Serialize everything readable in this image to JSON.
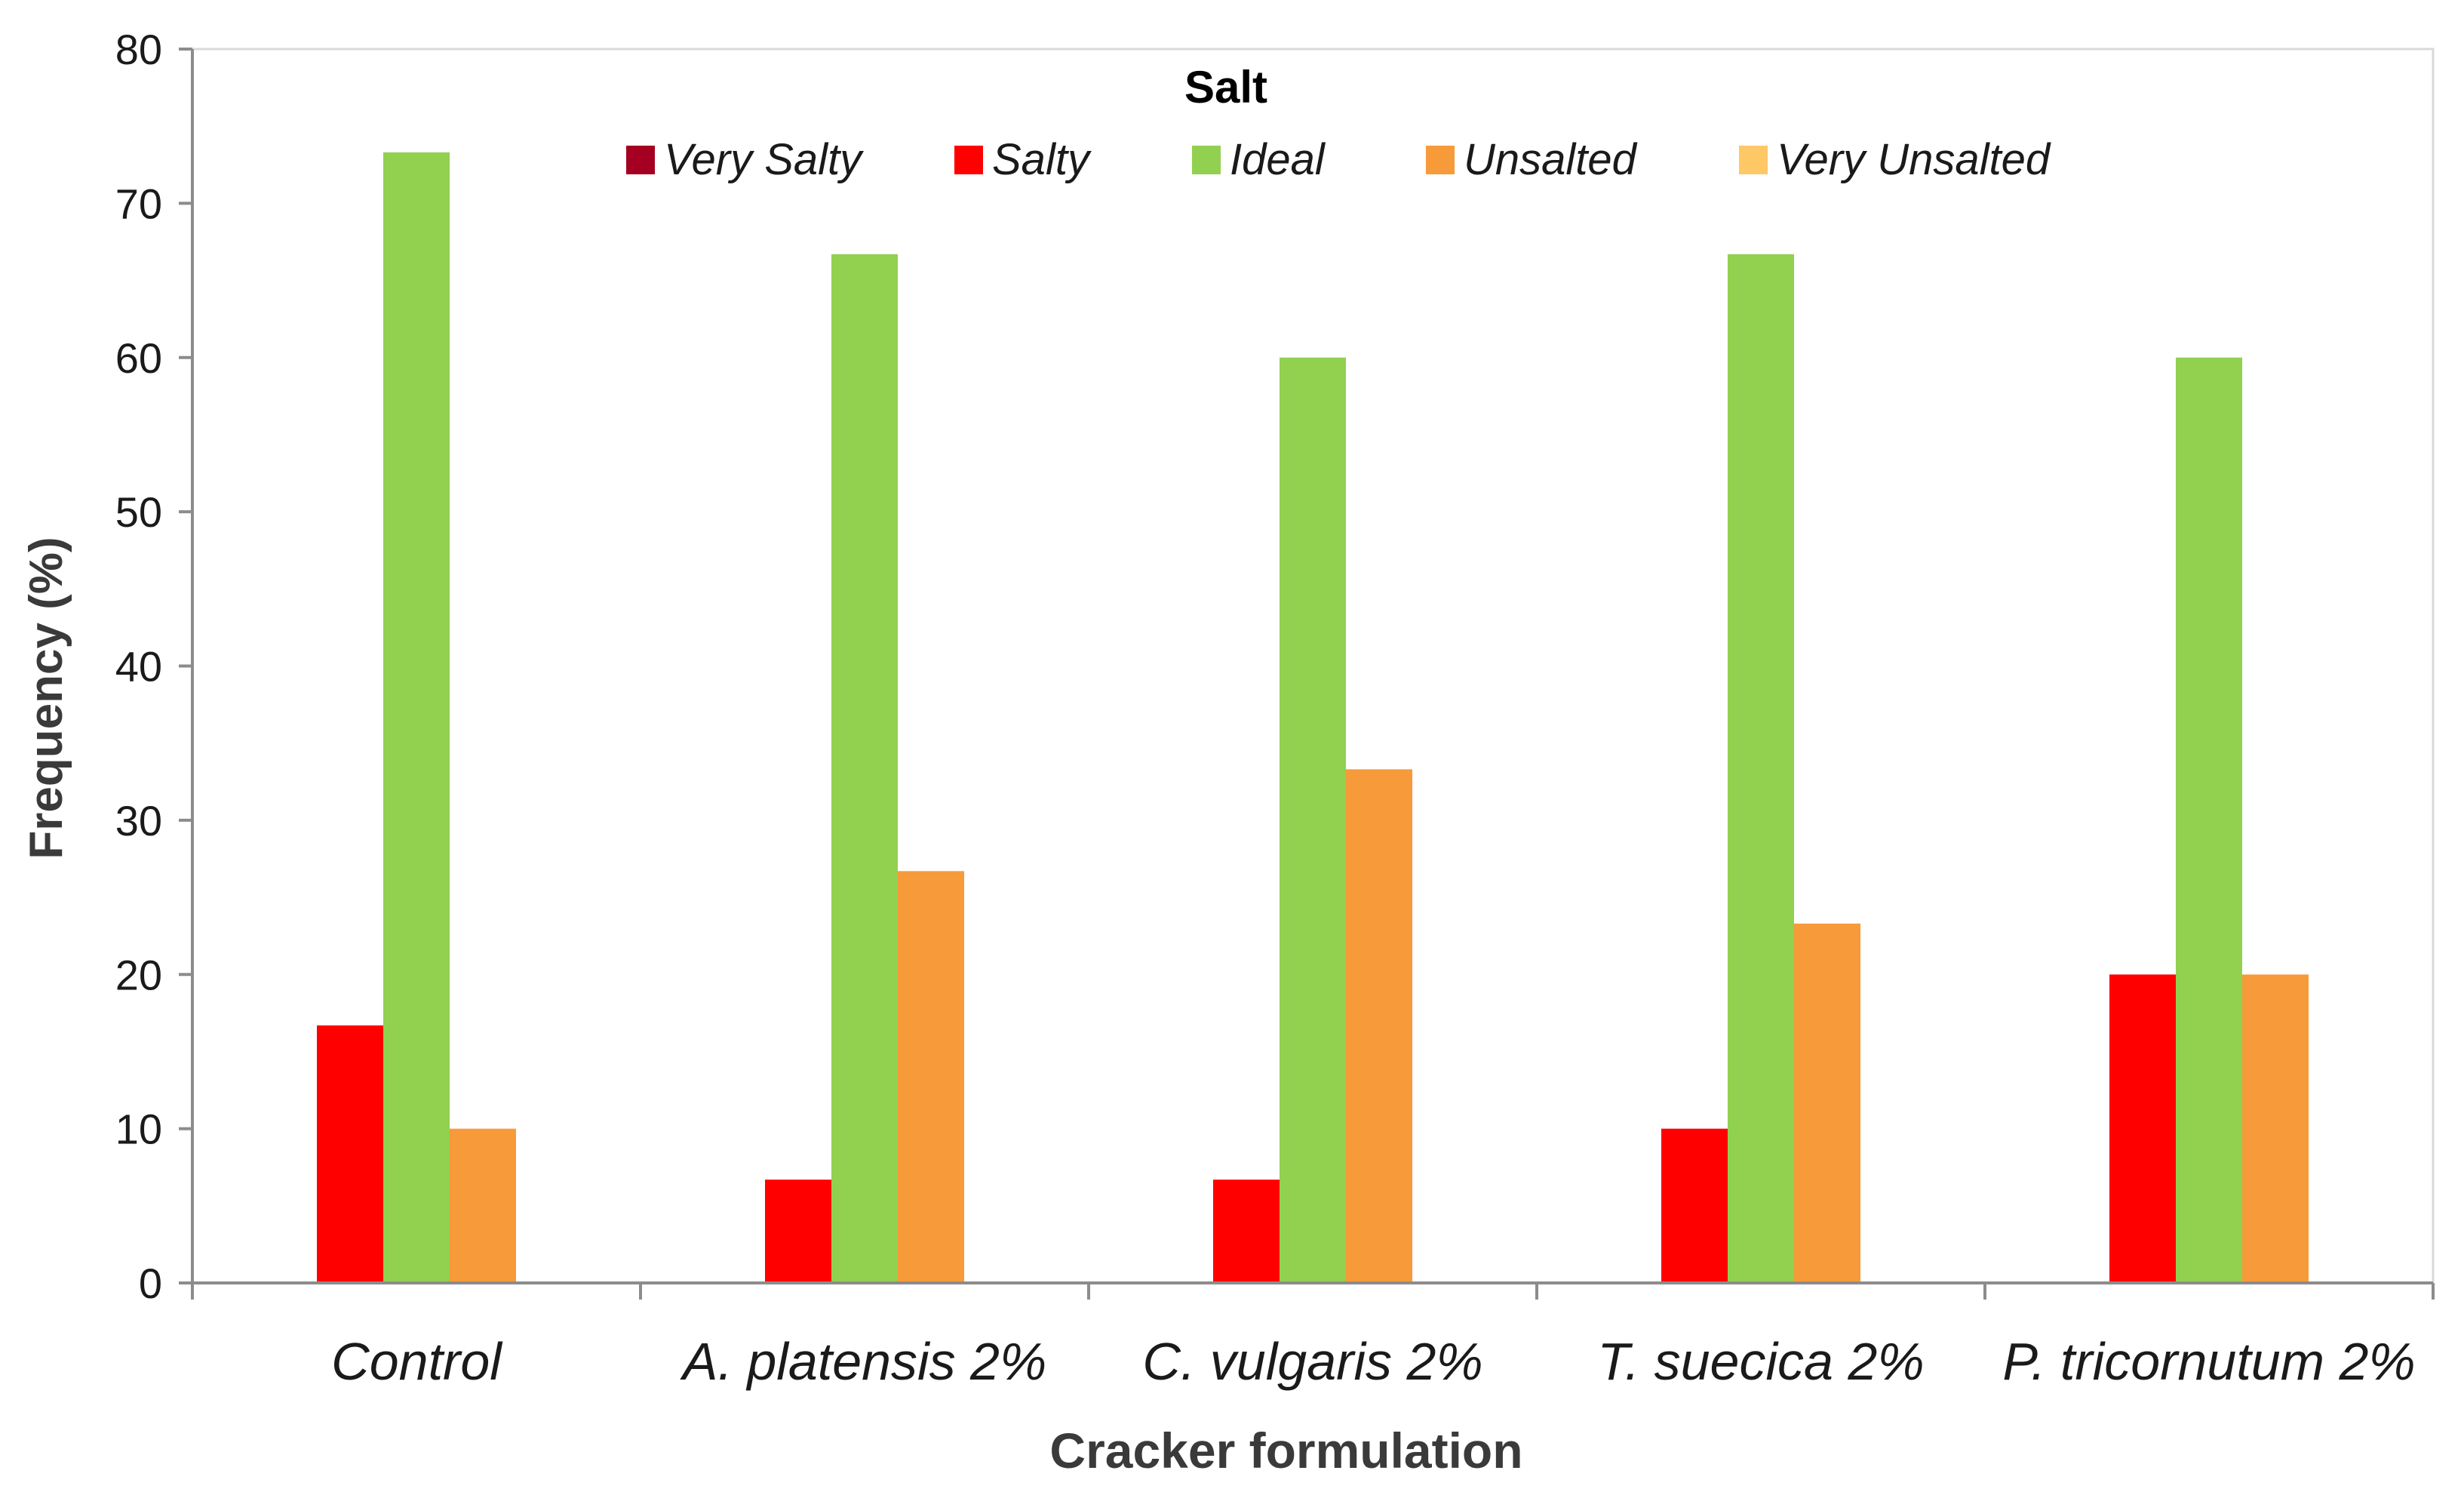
{
  "chart_data": {
    "type": "bar",
    "title": "Salt",
    "xlabel": "Cracker formulation",
    "ylabel": "Frequency (%)",
    "ylim": [
      0,
      80
    ],
    "yticks": [
      0,
      10,
      20,
      30,
      40,
      50,
      60,
      70,
      80
    ],
    "ytick_labels": [
      "0",
      "10",
      "20",
      "30",
      "40",
      "50",
      "60",
      "70",
      "80"
    ],
    "grid": false,
    "legend_position": "top-center",
    "categories": [
      "Control",
      "A. platensis 2%",
      "C. vulgaris 2%",
      "T. suecica 2%",
      "P. tricornutum 2%"
    ],
    "series": [
      {
        "name": "Very Salty",
        "color": "#a50021",
        "values": [
          0,
          0,
          0,
          0,
          0
        ]
      },
      {
        "name": "Salty",
        "color": "#ff0000",
        "values": [
          16.7,
          6.7,
          6.7,
          10.0,
          20.0
        ]
      },
      {
        "name": "Ideal",
        "color": "#92d050",
        "values": [
          73.3,
          66.7,
          60.0,
          66.7,
          60.0
        ]
      },
      {
        "name": "Unsalted",
        "color": "#f79a3a",
        "values": [
          10.0,
          26.7,
          33.3,
          23.3,
          20.0
        ]
      },
      {
        "name": "Very Unsalted",
        "color": "#ffc866",
        "values": [
          0,
          0,
          0,
          0,
          0
        ]
      }
    ]
  }
}
